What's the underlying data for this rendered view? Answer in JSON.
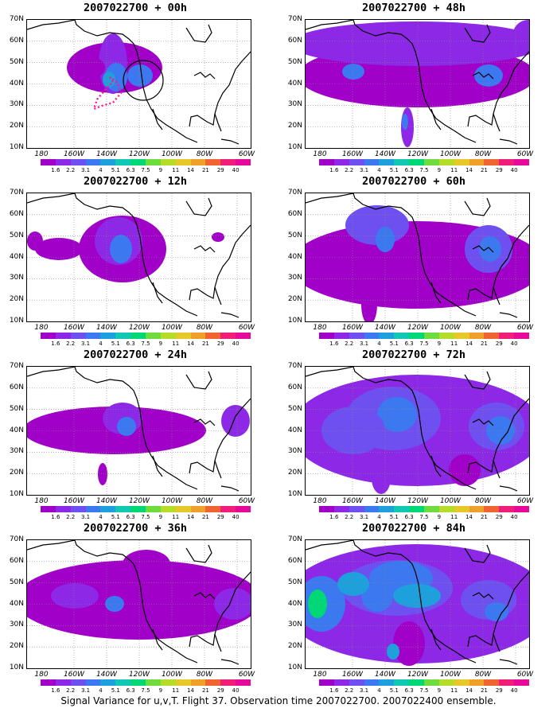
{
  "caption": "Signal Variance for u,v,T. Flight 37. Observation time 2007022700. 2007022400 ensemble.",
  "lat_labels": [
    "70N",
    "60N",
    "50N",
    "40N",
    "30N",
    "20N",
    "10N"
  ],
  "lon_labels": [
    "180",
    "160W",
    "140W",
    "120W",
    "100W",
    "80W",
    "60W"
  ],
  "colorbar": {
    "labels": [
      "1.6",
      "2.2",
      "3.1",
      "4",
      "5.1",
      "6.3",
      "7.5",
      "9",
      "11",
      "14",
      "21",
      "29",
      "40"
    ],
    "colors": [
      "#a000c8",
      "#8c28e6",
      "#6e50f0",
      "#3c78f0",
      "#1ea0dc",
      "#10c8b4",
      "#00d878",
      "#6edc3c",
      "#b4dc28",
      "#e6c828",
      "#f0a028",
      "#f06432",
      "#f01e78",
      "#e60a9a"
    ]
  },
  "overlays": {
    "circle_color": "#000000",
    "track_color": "#ff1493"
  },
  "panels": [
    {
      "title": "2007022700 + 00h"
    },
    {
      "title": "2007022700 + 48h"
    },
    {
      "title": "2007022700 + 12h"
    },
    {
      "title": "2007022700 + 60h"
    },
    {
      "title": "2007022700 + 24h"
    },
    {
      "title": "2007022700 + 72h"
    },
    {
      "title": "2007022700 + 36h"
    },
    {
      "title": "2007022700 + 84h"
    }
  ]
}
